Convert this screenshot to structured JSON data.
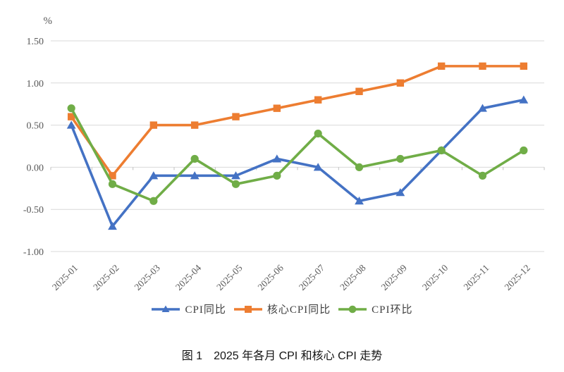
{
  "figure": {
    "caption": "图 1　2025 年各月 CPI 和核心 CPI 走势"
  },
  "chart_data": {
    "type": "line",
    "unit_label": "%",
    "categories": [
      "2025-01",
      "2025-02",
      "2025-03",
      "2025-04",
      "2025-05",
      "2025-06",
      "2025-07",
      "2025-08",
      "2025-09",
      "2025-10",
      "2025-11",
      "2025-12"
    ],
    "series": [
      {
        "name": "CPI同比",
        "marker": "triangle",
        "color": "#4472C4",
        "values": [
          0.5,
          -0.7,
          -0.1,
          -0.1,
          -0.1,
          0.1,
          0.0,
          -0.4,
          -0.3,
          0.2,
          0.7,
          0.8
        ]
      },
      {
        "name": "核心CPI同比",
        "marker": "square",
        "color": "#ED7D31",
        "values": [
          0.6,
          -0.1,
          0.5,
          0.5,
          0.6,
          0.7,
          0.8,
          0.9,
          1.0,
          1.2,
          1.2,
          1.2
        ]
      },
      {
        "name": "CPI环比",
        "marker": "circle",
        "color": "#70AD47",
        "values": [
          0.7,
          -0.2,
          -0.4,
          0.1,
          -0.2,
          -0.1,
          0.4,
          0.0,
          0.1,
          0.2,
          -0.1,
          0.2
        ]
      }
    ],
    "y_axis": {
      "min": -1.0,
      "max": 1.5,
      "tick_step": 0.5,
      "tick_values": [
        1.5,
        1.0,
        0.5,
        0.0,
        -0.5,
        -1.0
      ],
      "tick_labels": [
        "1.50",
        "1.00",
        "0.50",
        "0.00",
        "-0.50",
        "-1.00"
      ]
    },
    "grid": "horizontal",
    "legend_position": "bottom",
    "style_colors": {
      "gridline": "#D9D9D9",
      "axis_tick": "#BFBFBF",
      "tick_label": "#595959"
    }
  }
}
